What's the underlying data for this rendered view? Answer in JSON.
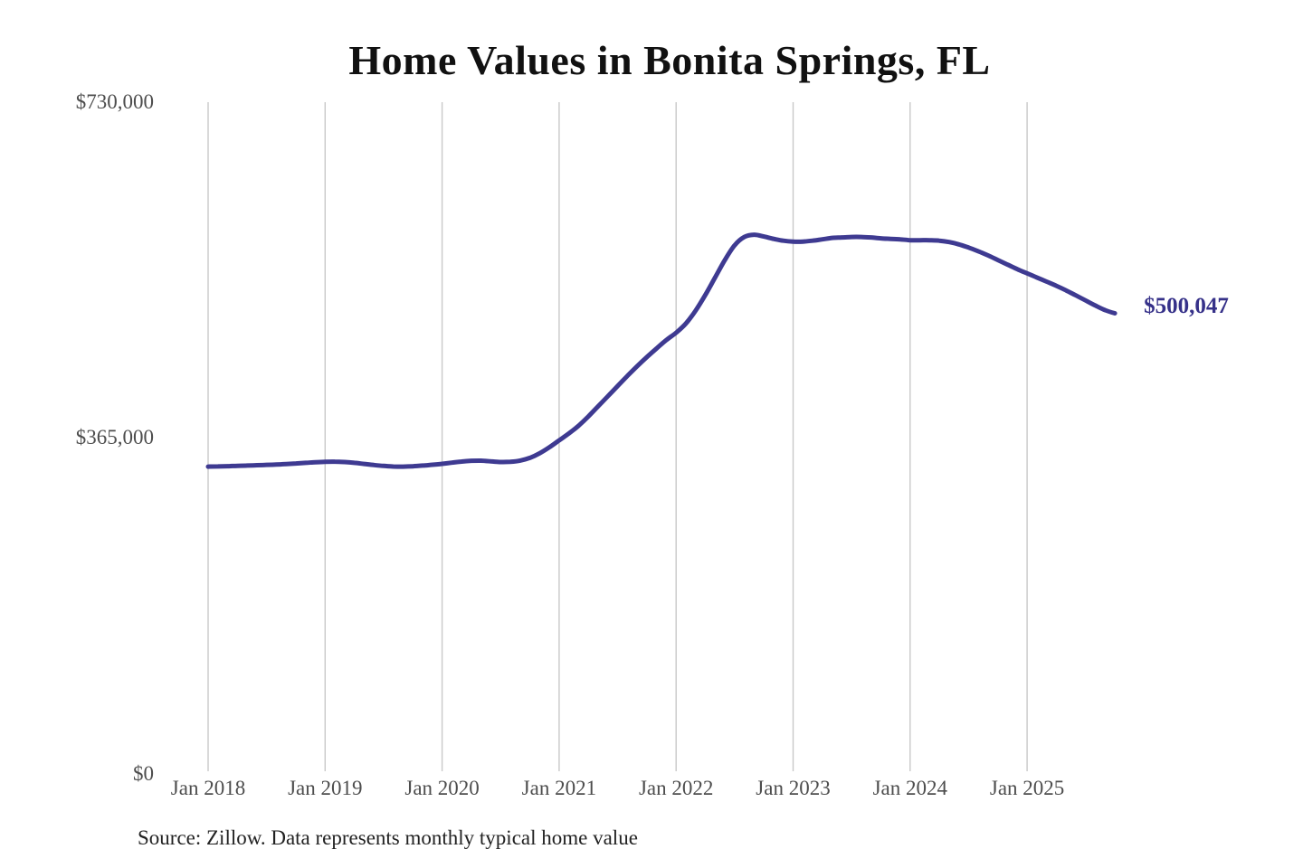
{
  "title": "Home Values in Bonita Springs, FL",
  "source_note": "Source: Zillow. Data represents monthly typical home value",
  "end_label": "$500,047",
  "colors": {
    "line": "#3e3a91",
    "grid": "#c9c9c9",
    "axis_text": "#4d4d4d",
    "title_text": "#111111",
    "end_label_text": "#363189",
    "background": "#ffffff"
  },
  "chart_data": {
    "type": "line",
    "title": "Home Values in Bonita Springs, FL",
    "series_name": "Monthly typical home value",
    "unit": "USD",
    "frequency": "monthly",
    "x_start": "2018-01",
    "x_end": "2025-10",
    "x_ticks": [
      "Jan 2018",
      "Jan 2019",
      "Jan 2020",
      "Jan 2021",
      "Jan 2022",
      "Jan 2023",
      "Jan 2024",
      "Jan 2025"
    ],
    "y_ticks": [
      {
        "label": "$730,000",
        "value": 730000
      },
      {
        "label": "$365,000",
        "value": 365000
      },
      {
        "label": "$0",
        "value": 0
      }
    ],
    "ylim": [
      0,
      730000
    ],
    "grid": "vertical-only",
    "legend": "none",
    "last_value": 500047,
    "values": [
      333500,
      333700,
      334000,
      334300,
      334600,
      335000,
      335400,
      335800,
      336300,
      336900,
      337600,
      338300,
      338800,
      338900,
      338500,
      337600,
      336400,
      335200,
      334200,
      333600,
      333500,
      333900,
      334600,
      335500,
      336500,
      337800,
      339000,
      339800,
      339900,
      339200,
      338500,
      338700,
      340000,
      343000,
      348000,
      354500,
      362000,
      369500,
      378000,
      388000,
      399000,
      410000,
      421000,
      432000,
      442500,
      452500,
      462000,
      471000,
      479000,
      489000,
      503000,
      520000,
      539000,
      558000,
      574000,
      583000,
      585500,
      583500,
      581000,
      579000,
      578000,
      578000,
      579000,
      580500,
      582000,
      582500,
      583000,
      583000,
      582500,
      581500,
      581000,
      580500,
      579500,
      579500,
      579500,
      579000,
      577500,
      575000,
      571500,
      567500,
      563000,
      558000,
      553000,
      548000,
      543500,
      539000,
      534500,
      530000,
      525000,
      519500,
      514000,
      508500,
      503500,
      500047
    ]
  }
}
